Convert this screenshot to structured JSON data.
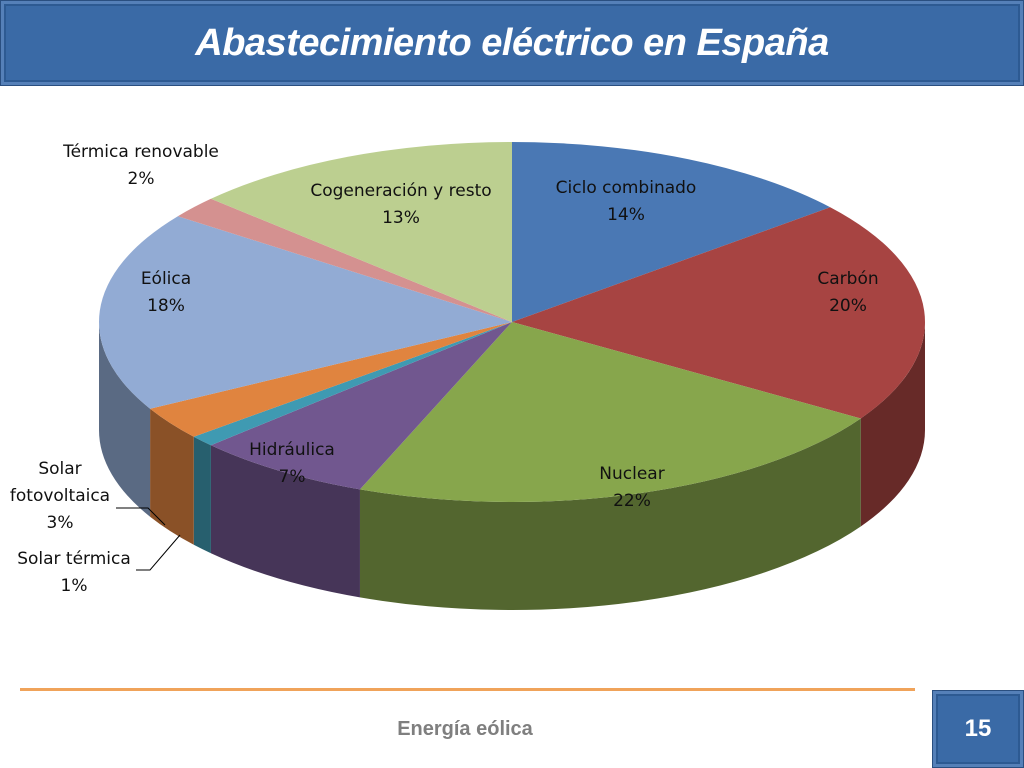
{
  "slide": {
    "title": "Abastecimiento eléctrico en España",
    "footer": "Energía eólica",
    "page_number": "15"
  },
  "chart_data": {
    "type": "pie",
    "title": "Abastecimiento eléctrico en España",
    "slices": [
      {
        "name": "Ciclo combinado",
        "value": 14,
        "label": "14%",
        "color": "#4a78b4"
      },
      {
        "name": "Carbón",
        "value": 20,
        "label": "20%",
        "color": "#a74442"
      },
      {
        "name": "Nuclear",
        "value": 22,
        "label": "22%",
        "color": "#87a64c"
      },
      {
        "name": "Hidráulica",
        "value": 7,
        "label": "7%",
        "color": "#71578f"
      },
      {
        "name": "Solar térmica",
        "value": 1,
        "label": "1%",
        "color": "#3f9ab2"
      },
      {
        "name": "Solar fotovoltaica",
        "value": 3,
        "label": "3%",
        "color": "#e0843f"
      },
      {
        "name": "Eólica",
        "value": 18,
        "label": "18%",
        "color": "#92abd4"
      },
      {
        "name": "Térmica renovable",
        "value": 2,
        "label": "2%",
        "color": "#d49190"
      },
      {
        "name": "Cogeneración y resto",
        "value": 13,
        "label": "13%",
        "color": "#bccf90"
      }
    ]
  }
}
